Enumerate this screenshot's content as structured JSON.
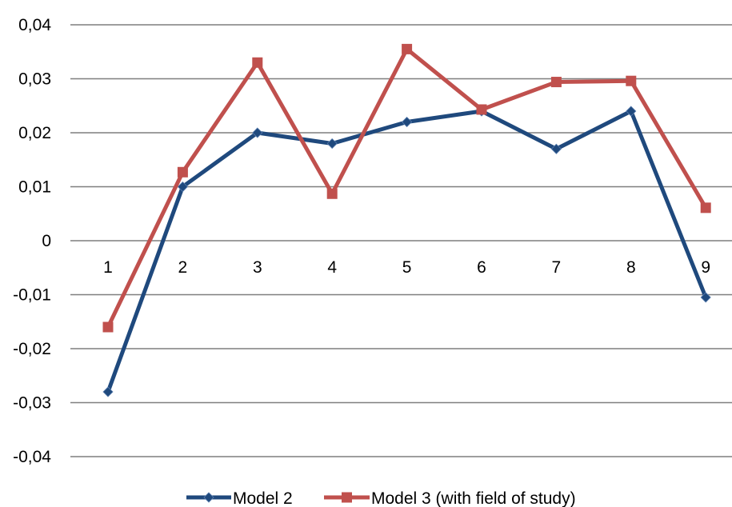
{
  "chart_data": {
    "type": "line",
    "categories": [
      "1",
      "2",
      "3",
      "4",
      "5",
      "6",
      "7",
      "8",
      "9"
    ],
    "series": [
      {
        "name": "Model 2",
        "color": "#1F497D",
        "marker": "diamond",
        "values": [
          -0.028,
          0.01,
          0.02,
          0.018,
          0.022,
          0.024,
          0.017,
          0.024,
          -0.0105
        ]
      },
      {
        "name": "Model 3 (with field of study)",
        "color": "#C0504D",
        "marker": "square",
        "values": [
          -0.016,
          0.0127,
          0.033,
          0.0087,
          0.0355,
          0.0243,
          0.0294,
          0.0296,
          0.0061
        ]
      }
    ],
    "yticks": [
      "0,04",
      "0,03",
      "0,02",
      "0,01",
      "0",
      "-0,01",
      "-0,02",
      "-0,03",
      "-0,04"
    ],
    "ytick_values": [
      0.04,
      0.03,
      0.02,
      0.01,
      0,
      -0.01,
      -0.02,
      -0.03,
      -0.04
    ],
    "ylim": [
      -0.04,
      0.04
    ],
    "grid": true,
    "legend_position": "bottom",
    "title": "",
    "xlabel": "",
    "ylabel": ""
  }
}
